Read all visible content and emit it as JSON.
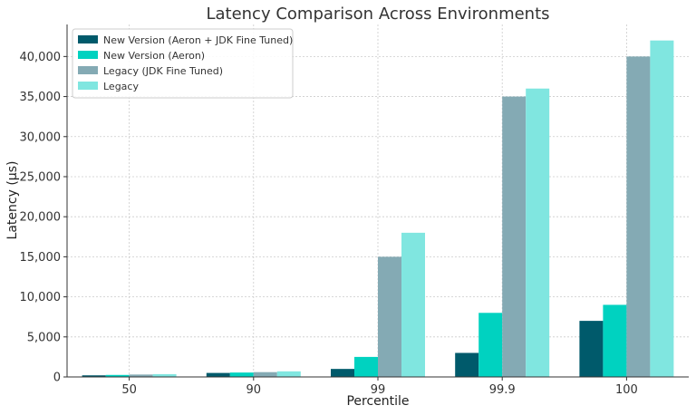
{
  "chart_data": {
    "type": "bar",
    "title": "Latency Comparison Across Environments",
    "xlabel": "Percentile",
    "ylabel": "Latency (µs)",
    "categories": [
      "50",
      "90",
      "99",
      "99.9",
      "100"
    ],
    "ylim": [
      0,
      44000
    ],
    "yticks": [
      0,
      5000,
      10000,
      15000,
      20000,
      25000,
      30000,
      35000,
      40000
    ],
    "ytick_labels": [
      "0",
      "5,000",
      "10,000",
      "15,000",
      "20,000",
      "25,000",
      "30,000",
      "35,000",
      "40,000"
    ],
    "grid": true,
    "legend_position": "top-left",
    "series": [
      {
        "name": "New Version (Aeron + JDK Fine Tuned)",
        "color": "#005a6b",
        "values": [
          200,
          500,
          1000,
          3000,
          7000
        ]
      },
      {
        "name": "New Version (Aeron)",
        "color": "#00d2c0",
        "values": [
          250,
          550,
          2500,
          8000,
          9000
        ]
      },
      {
        "name": "Legacy (JDK Fine Tuned)",
        "color": "#84aab4",
        "values": [
          300,
          600,
          15000,
          35000,
          40000
        ]
      },
      {
        "name": "Legacy",
        "color": "#80e6e0",
        "values": [
          350,
          700,
          18000,
          36000,
          42000
        ]
      }
    ]
  }
}
